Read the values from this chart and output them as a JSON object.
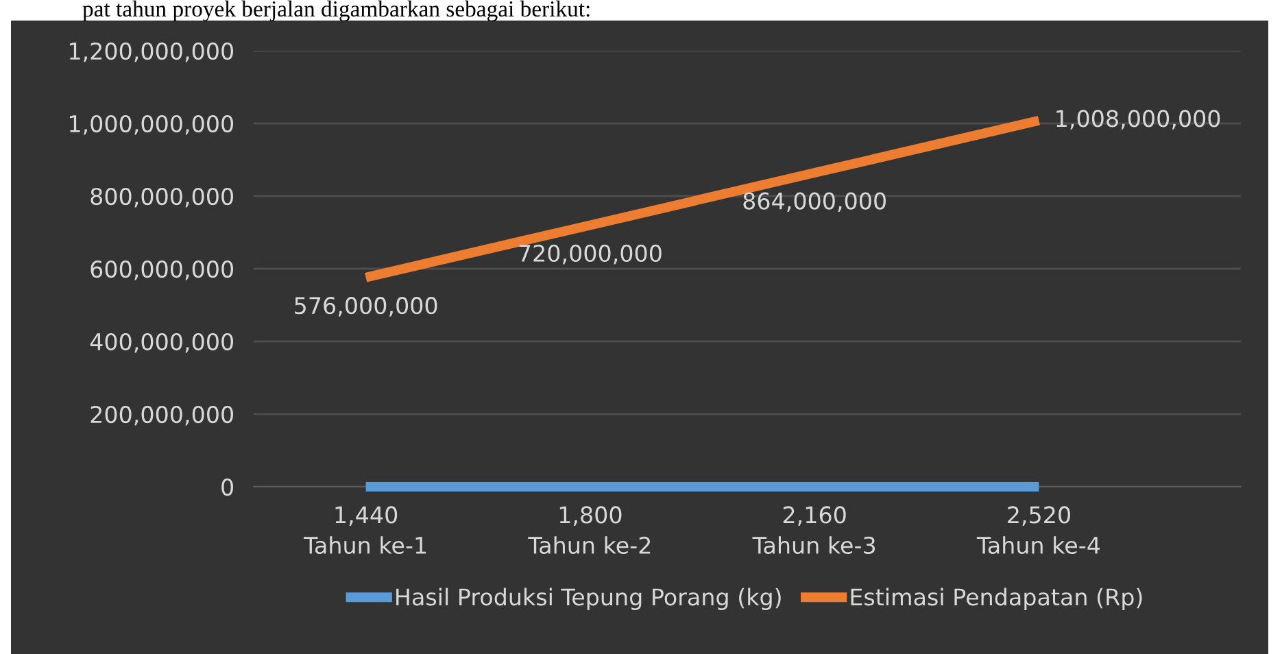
{
  "chart_data": {
    "type": "line",
    "annotations": [
      "pat tahun proyek berjalan digambarkan sebagai berikut:"
    ],
    "categories": [
      "Tahun ke-1",
      "Tahun ke-2",
      "Tahun ke-3",
      "Tahun ke-4"
    ],
    "series": [
      {
        "name": "Hasil Produksi Tepung Porang (kg)",
        "color": "#5b9bd5",
        "values": [
          1440,
          1800,
          2160,
          2520
        ],
        "value_labels": [
          "1,440",
          "1,800",
          "2,160",
          "2,520"
        ]
      },
      {
        "name": "Estimasi Pendapatan (Rp)",
        "color": "#ed7d31",
        "values": [
          576000000,
          720000000,
          864000000,
          1008000000
        ],
        "value_labels": [
          "576,000,000",
          "720,000,000",
          "864,000,000",
          "1,008,000,000"
        ]
      }
    ],
    "ylim": [
      0,
      1200000000
    ],
    "yticks": [
      0,
      {
        "value": 200000000,
        "label": "200,000,000"
      },
      {
        "value": 400000000,
        "label": "400,000,000"
      },
      {
        "value": 600000000,
        "label": "600,000,000"
      },
      {
        "value": 800000000,
        "label": "800,000,000"
      },
      {
        "value": 1000000000,
        "label": "1,000,000,000"
      },
      {
        "value": 1200000000,
        "label": "1,200,000,000"
      }
    ],
    "grid": "y",
    "legend": "bottom",
    "marker": "none",
    "line_style": "solid"
  }
}
